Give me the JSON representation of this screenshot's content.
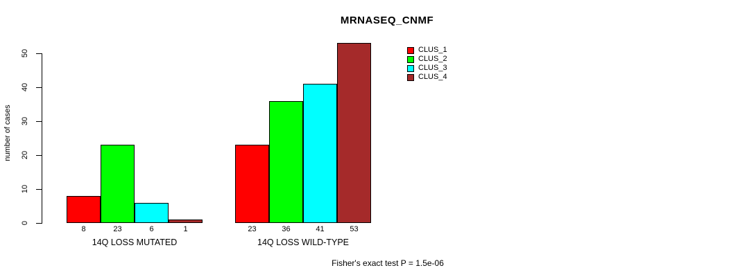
{
  "chart_data": {
    "type": "bar",
    "title": "MRNASEQ_CNMF",
    "ylabel": "number of cases",
    "xlabel": "",
    "ylim": [
      0,
      53
    ],
    "yticks": [
      0,
      10,
      20,
      30,
      40,
      50
    ],
    "grid": false,
    "legend_position": "top-right-inside",
    "categories": [
      "14Q LOSS MUTATED",
      "14Q LOSS WILD-TYPE"
    ],
    "series": [
      {
        "name": "CLUS_1",
        "color": "#FF0000",
        "values": [
          8,
          23
        ]
      },
      {
        "name": "CLUS_2",
        "color": "#00FF00",
        "values": [
          23,
          36
        ]
      },
      {
        "name": "CLUS_3",
        "color": "#00FFFF",
        "values": [
          6,
          41
        ]
      },
      {
        "name": "CLUS_4",
        "color": "#A52A2A",
        "values": [
          1,
          53
        ]
      }
    ],
    "bar_value_labels": [
      [
        8,
        23,
        6,
        1
      ],
      [
        23,
        36,
        41,
        53
      ]
    ],
    "annotation": "Fisher's exact test P = 1.5e-06",
    "axis_color": "#000000",
    "text_color": "#000000",
    "background_color": "#FFFFFF"
  }
}
